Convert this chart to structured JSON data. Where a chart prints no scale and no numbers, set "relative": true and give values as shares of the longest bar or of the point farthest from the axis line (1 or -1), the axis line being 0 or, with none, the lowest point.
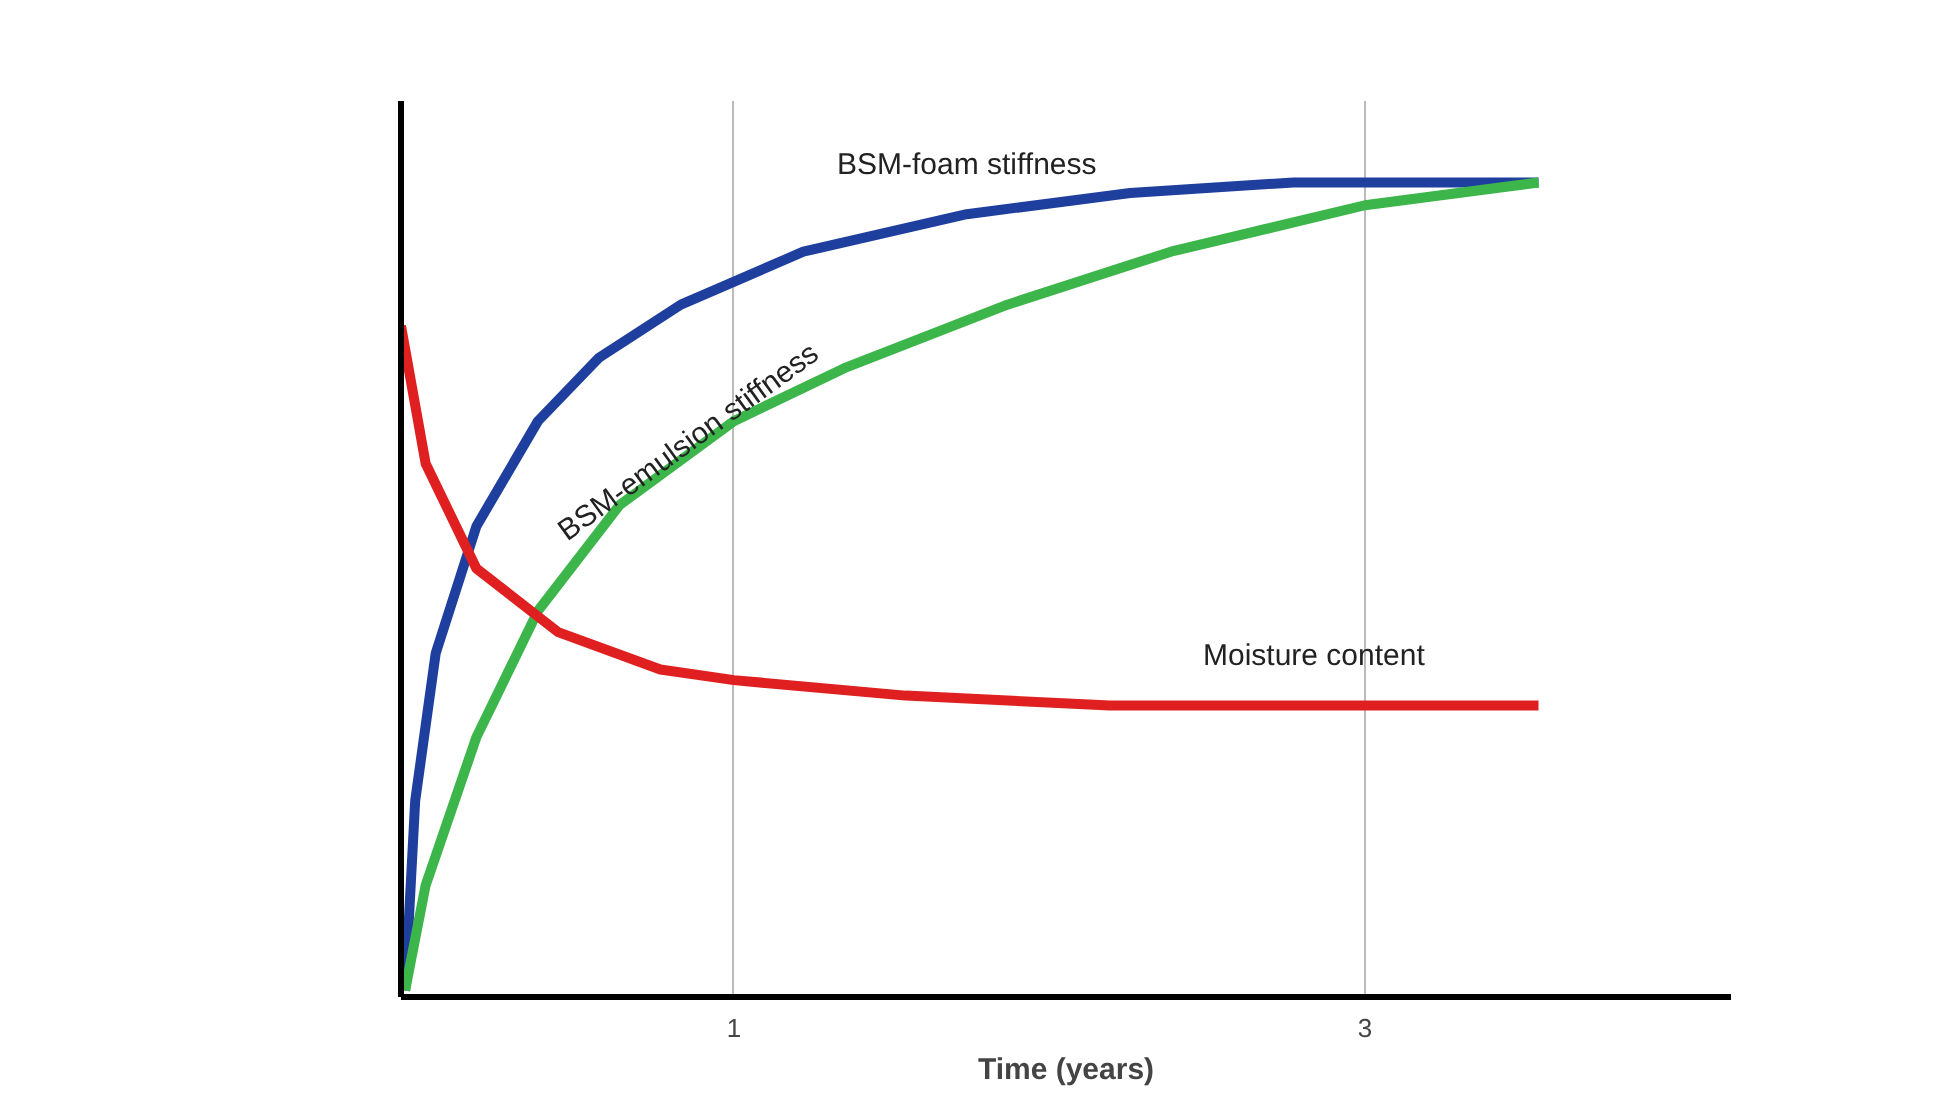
{
  "chart_data": {
    "type": "line",
    "relative": true,
    "xlabel": "Time (years)",
    "xlim": [
      -0.055,
      4.16
    ],
    "xticks": [
      1,
      3
    ],
    "grid": "x",
    "series": [
      {
        "name": "BSM-foam stiffness",
        "color": "#1f3f9e",
        "x": [
          -0.042,
          -0.01,
          0.055,
          0.184,
          0.379,
          0.573,
          0.832,
          1.22,
          1.738,
          2.256,
          2.773,
          3.55
        ],
        "values": [
          0.008,
          0.241,
          0.422,
          0.578,
          0.707,
          0.785,
          0.85,
          0.915,
          0.961,
          0.987,
          1,
          1
        ]
      },
      {
        "name": "BSM-emulsion stiffness",
        "color": "#3cb54a",
        "x": [
          -0.042,
          0.023,
          0.184,
          0.379,
          0.638,
          1,
          1.35,
          1.867,
          2.385,
          3,
          3.55
        ],
        "values": [
          0.008,
          0.137,
          0.319,
          0.474,
          0.604,
          0.707,
          0.772,
          0.85,
          0.915,
          0.972,
          1
        ]
      },
      {
        "name": "Moisture content",
        "color": "#e02020",
        "x": [
          -0.055,
          0.023,
          0.184,
          0.443,
          0.767,
          1,
          1.544,
          2.191,
          2.838,
          3.55
        ],
        "values": [
          0.824,
          0.655,
          0.526,
          0.448,
          0.402,
          0.389,
          0.37,
          0.358,
          0.358,
          0.358
        ]
      }
    ]
  }
}
